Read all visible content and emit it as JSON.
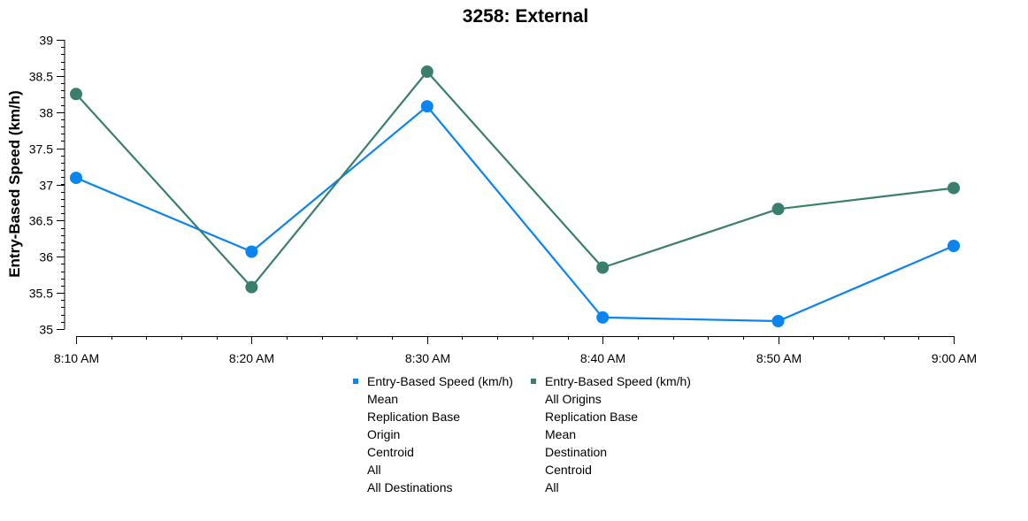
{
  "chart_data": {
    "type": "line",
    "title": "3258: External",
    "xlabel": "",
    "ylabel": "Entry-Based Speed (km/h)",
    "categories": [
      "8:10 AM",
      "8:20 AM",
      "8:30 AM",
      "8:40 AM",
      "8:50 AM",
      "9:00 AM"
    ],
    "ylim": [
      35,
      39
    ],
    "yticks": [
      "35",
      "35.5",
      "36",
      "36.5",
      "37",
      "37.5",
      "38",
      "38.5",
      "39"
    ],
    "grid": false,
    "legend_position": "bottom",
    "series": [
      {
        "name": "Entry-Based Speed (km/h)",
        "legend_lines": [
          "Mean",
          "Replication Base",
          "Origin",
          "Centroid",
          "All",
          "All Destinations"
        ],
        "color": "#0a84f0",
        "values": [
          37.09,
          36.07,
          38.08,
          35.16,
          35.11,
          36.15
        ]
      },
      {
        "name": "Entry-Based Speed (km/h)",
        "legend_lines": [
          "All Origins",
          "Replication Base",
          "Mean",
          "Destination",
          "Centroid",
          "All"
        ],
        "color": "#3a7e6e",
        "values": [
          38.25,
          35.58,
          38.56,
          35.85,
          36.66,
          36.95
        ]
      }
    ]
  }
}
